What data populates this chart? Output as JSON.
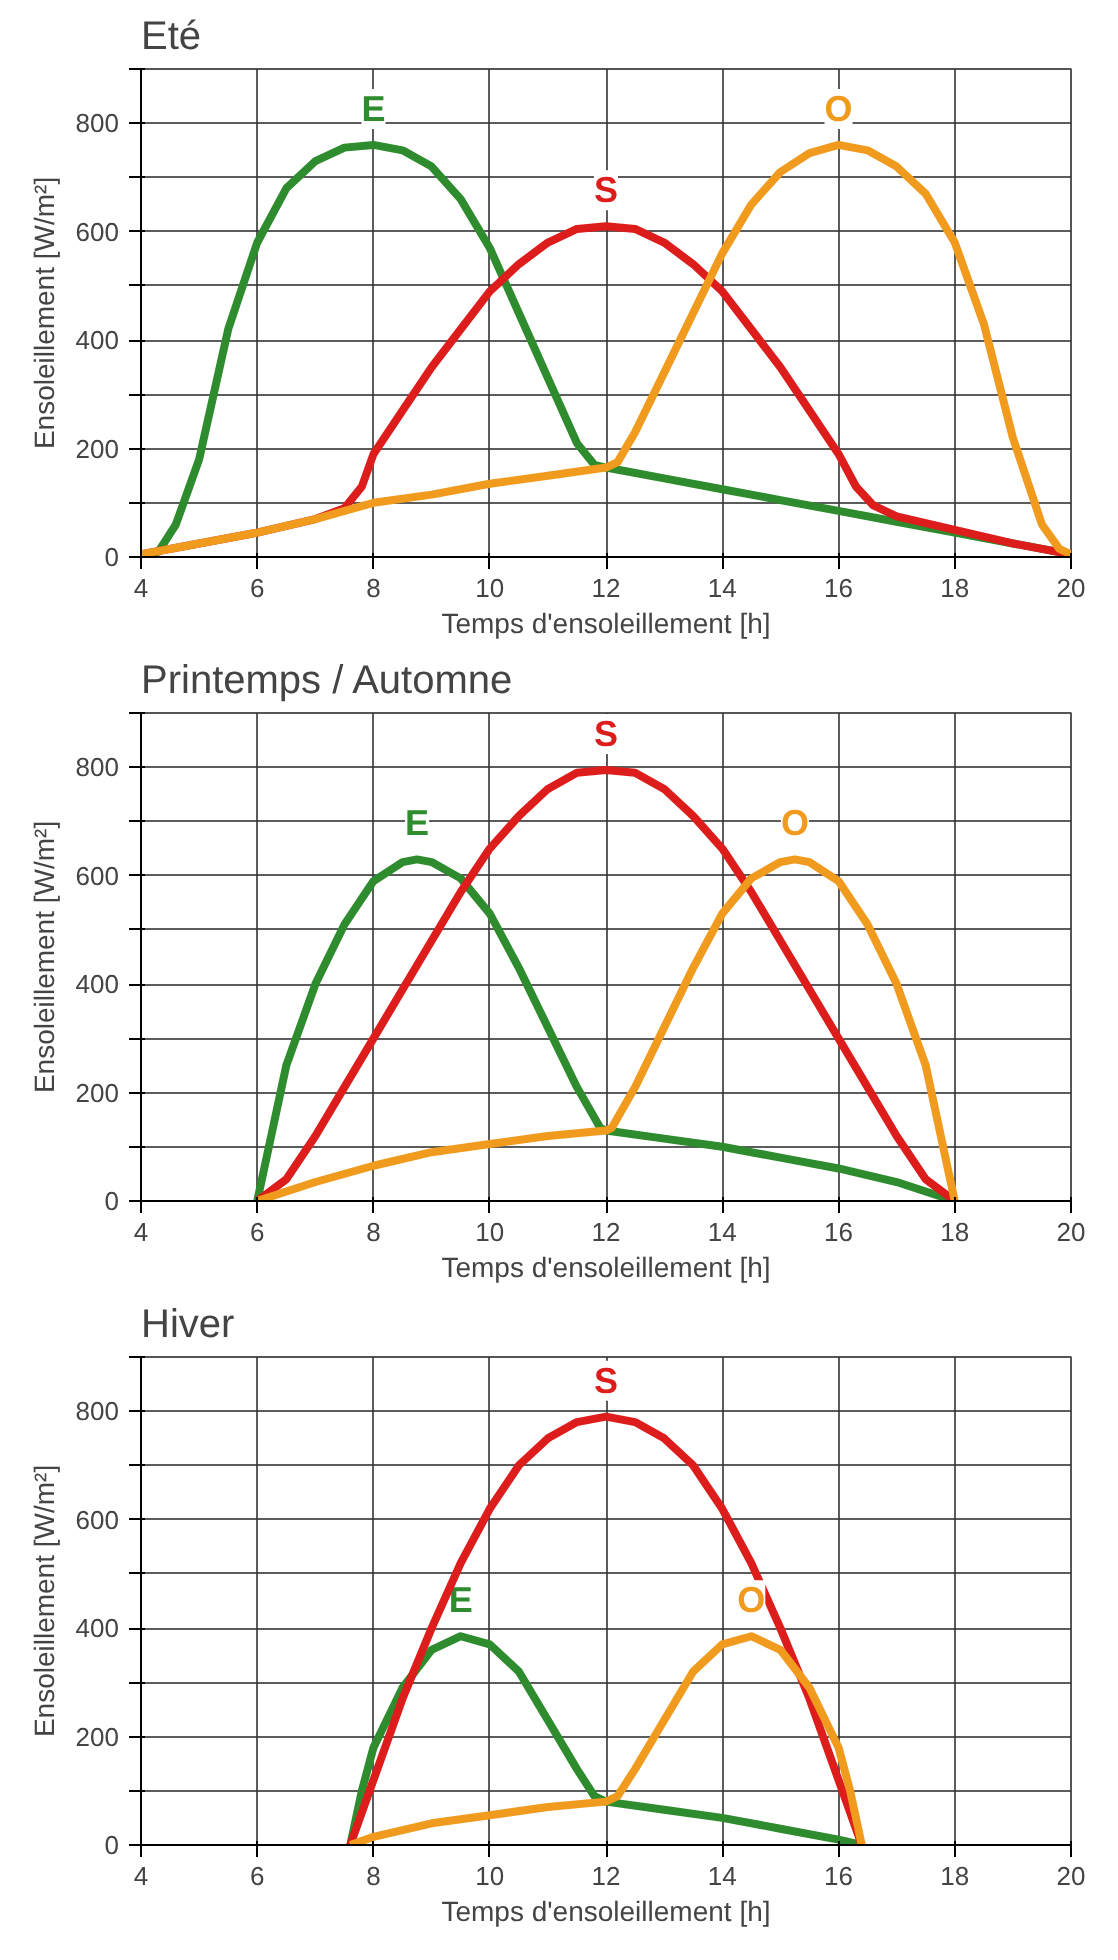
{
  "chart_data": [
    {
      "type": "line",
      "title": "Eté",
      "xlabel": "Temps d'ensoleillement [h]",
      "ylabel": "Ensoleillement [W/m²]",
      "xlim": [
        4,
        20
      ],
      "ylim": [
        0,
        900
      ],
      "xticks": [
        4,
        6,
        8,
        10,
        12,
        14,
        16,
        18,
        20
      ],
      "yticks": [
        0,
        {
          "value": 100,
          "label": null
        },
        200,
        {
          "value": 300,
          "label": null
        },
        400,
        {
          "value": 500,
          "label": null
        },
        600,
        {
          "value": 700,
          "label": null
        },
        800,
        {
          "value": 900,
          "label": null
        }
      ],
      "grid": true,
      "legend": false,
      "marker": "none",
      "line_style": "solid",
      "series": [
        {
          "name": "E",
          "color": "#2e8b2e",
          "x": [
            4,
            4.3,
            4.6,
            5,
            5.5,
            6,
            6.5,
            7,
            7.5,
            8,
            8.5,
            9,
            9.5,
            10,
            10.5,
            11,
            11.5,
            11.8,
            12,
            13,
            14,
            15,
            16,
            17,
            18,
            19,
            20
          ],
          "values": [
            0,
            10,
            60,
            180,
            420,
            580,
            680,
            730,
            755,
            760,
            750,
            720,
            660,
            570,
            450,
            330,
            210,
            170,
            165,
            145,
            125,
            105,
            85,
            65,
            45,
            25,
            5
          ]
        },
        {
          "name": "S",
          "color": "#dd1c1c",
          "x": [
            4,
            5,
            6,
            7,
            7.5,
            7.8,
            8,
            8.5,
            9,
            9.5,
            10,
            10.5,
            11,
            11.5,
            12,
            12.5,
            13,
            13.5,
            14,
            14.5,
            15,
            15.5,
            16,
            16.3,
            16.6,
            17,
            18,
            19,
            20
          ],
          "values": [
            5,
            25,
            45,
            70,
            90,
            130,
            190,
            270,
            350,
            420,
            490,
            540,
            580,
            605,
            610,
            605,
            580,
            540,
            490,
            420,
            350,
            270,
            190,
            130,
            95,
            75,
            50,
            25,
            5
          ]
        },
        {
          "name": "O",
          "color": "#f09a1e",
          "x": [
            4,
            5,
            6,
            7,
            8,
            9,
            10,
            11,
            12,
            12.2,
            12.5,
            13,
            13.5,
            14,
            14.5,
            15,
            15.5,
            16,
            16.5,
            17,
            17.5,
            18,
            18.5,
            19,
            19.5,
            19.8,
            20
          ],
          "values": [
            5,
            25,
            45,
            70,
            100,
            115,
            135,
            150,
            165,
            175,
            230,
            340,
            450,
            560,
            650,
            710,
            745,
            760,
            750,
            720,
            670,
            580,
            430,
            220,
            60,
            15,
            5
          ]
        }
      ]
    },
    {
      "type": "line",
      "title": "Printemps / Automne",
      "xlabel": "Temps d'ensoleillement [h]",
      "ylabel": "Ensoleillement [W/m²]",
      "xlim": [
        4,
        20
      ],
      "ylim": [
        0,
        900
      ],
      "xticks": [
        4,
        6,
        8,
        10,
        12,
        14,
        16,
        18,
        20
      ],
      "yticks": [
        0,
        {
          "value": 100,
          "label": null
        },
        200,
        {
          "value": 300,
          "label": null
        },
        400,
        {
          "value": 500,
          "label": null
        },
        600,
        {
          "value": 700,
          "label": null
        },
        800,
        {
          "value": 900,
          "label": null
        }
      ],
      "grid": true,
      "legend": false,
      "marker": "none",
      "line_style": "solid",
      "series": [
        {
          "name": "E",
          "color": "#2e8b2e",
          "x": [
            6,
            6.2,
            6.5,
            7,
            7.5,
            8,
            8.5,
            8.75,
            9,
            9.5,
            10,
            10.5,
            11,
            11.5,
            11.9,
            12,
            13,
            14,
            15,
            16,
            17,
            18
          ],
          "values": [
            0,
            100,
            250,
            400,
            510,
            590,
            625,
            630,
            625,
            595,
            530,
            430,
            320,
            210,
            135,
            130,
            115,
            100,
            80,
            60,
            35,
            0
          ]
        },
        {
          "name": "S",
          "color": "#dd1c1c",
          "x": [
            6,
            6.5,
            7,
            7.5,
            8,
            8.5,
            9,
            9.5,
            10,
            10.5,
            11,
            11.5,
            12,
            12.5,
            13,
            13.5,
            14,
            14.5,
            15,
            15.5,
            16,
            16.5,
            17,
            17.5,
            18
          ],
          "values": [
            0,
            40,
            120,
            210,
            300,
            390,
            480,
            570,
            650,
            710,
            760,
            790,
            795,
            790,
            760,
            710,
            650,
            570,
            480,
            390,
            300,
            210,
            120,
            40,
            0
          ]
        },
        {
          "name": "O",
          "color": "#f09a1e",
          "x": [
            6,
            7,
            8,
            9,
            10,
            11,
            12,
            12.1,
            12.5,
            13,
            13.5,
            14,
            14.5,
            15,
            15.25,
            15.5,
            16,
            16.5,
            17,
            17.5,
            17.8,
            18
          ],
          "values": [
            0,
            35,
            65,
            90,
            105,
            120,
            130,
            135,
            210,
            320,
            430,
            530,
            595,
            625,
            630,
            625,
            590,
            510,
            400,
            250,
            100,
            0
          ]
        }
      ]
    },
    {
      "type": "line",
      "title": "Hiver",
      "xlabel": "Temps d'ensoleillement [h]",
      "ylabel": "Ensoleillement [W/m²]",
      "xlim": [
        4,
        20
      ],
      "ylim": [
        0,
        900
      ],
      "xticks": [
        4,
        6,
        8,
        10,
        12,
        14,
        16,
        18,
        20
      ],
      "yticks": [
        0,
        {
          "value": 100,
          "label": null
        },
        200,
        {
          "value": 300,
          "label": null
        },
        400,
        {
          "value": 500,
          "label": null
        },
        600,
        {
          "value": 700,
          "label": null
        },
        800,
        {
          "value": 900,
          "label": null
        }
      ],
      "grid": true,
      "legend": false,
      "marker": "none",
      "line_style": "solid",
      "series": [
        {
          "name": "E",
          "color": "#2e8b2e",
          "x": [
            7.6,
            7.8,
            8,
            8.5,
            9,
            9.5,
            10,
            10.5,
            11,
            11.5,
            11.8,
            12,
            13,
            14,
            15,
            16,
            16.4
          ],
          "values": [
            0,
            100,
            180,
            290,
            360,
            385,
            370,
            320,
            230,
            140,
            90,
            80,
            65,
            50,
            30,
            10,
            0
          ]
        },
        {
          "name": "S",
          "color": "#dd1c1c",
          "x": [
            7.6,
            8,
            8.5,
            9,
            9.5,
            10,
            10.5,
            11,
            11.5,
            12,
            12.5,
            13,
            13.5,
            14,
            14.5,
            15,
            15.5,
            16,
            16.4
          ],
          "values": [
            0,
            120,
            270,
            400,
            520,
            620,
            700,
            750,
            780,
            790,
            780,
            750,
            700,
            620,
            520,
            400,
            270,
            120,
            0
          ]
        },
        {
          "name": "O",
          "color": "#f09a1e",
          "x": [
            7.6,
            8,
            9,
            10,
            11,
            12,
            12.2,
            12.5,
            13,
            13.5,
            14,
            14.5,
            15,
            15.5,
            16,
            16.2,
            16.4
          ],
          "values": [
            0,
            15,
            40,
            55,
            70,
            80,
            90,
            140,
            230,
            320,
            370,
            385,
            360,
            290,
            180,
            100,
            0
          ]
        }
      ]
    }
  ]
}
